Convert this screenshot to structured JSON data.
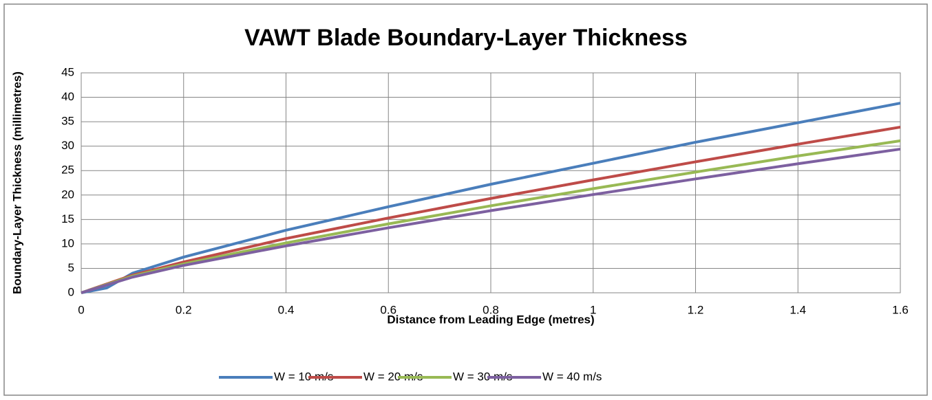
{
  "chart_data": {
    "type": "line",
    "title": "VAWT Blade Boundary-Layer Thickness",
    "xlabel": "Distance from Leading Edge (metres)",
    "ylabel": "Boundary-Layer Thickness (millimetres)",
    "x": [
      0,
      0.05,
      0.1,
      0.2,
      0.4,
      0.6,
      0.8,
      1.0,
      1.2,
      1.4,
      1.6
    ],
    "series": [
      {
        "name": "W = 10 m/s",
        "color": "#4a7ebb",
        "values": [
          0,
          1.0,
          4.0,
          7.3,
          12.8,
          17.6,
          22.2,
          26.5,
          30.8,
          34.8,
          38.8
        ]
      },
      {
        "name": "W = 20 m/s",
        "color": "#be4b48",
        "values": [
          0,
          1.8,
          3.6,
          6.3,
          11.1,
          15.3,
          19.3,
          23.1,
          26.8,
          30.4,
          33.9
        ]
      },
      {
        "name": "W = 30 m/s",
        "color": "#98b954",
        "values": [
          0,
          1.7,
          3.4,
          5.9,
          10.2,
          14.1,
          17.8,
          21.3,
          24.7,
          28.0,
          31.1
        ]
      },
      {
        "name": "W = 40 m/s",
        "color": "#7d60a0",
        "values": [
          0,
          1.6,
          3.2,
          5.6,
          9.6,
          13.3,
          16.8,
          20.1,
          23.3,
          26.4,
          29.4
        ]
      }
    ],
    "xlim": [
      0,
      1.6
    ],
    "xticks": [
      0,
      0.2,
      0.4,
      0.6,
      0.8,
      1,
      1.2,
      1.4,
      1.6
    ],
    "ylim": [
      0,
      45
    ],
    "yticks": [
      0,
      5,
      10,
      15,
      20,
      25,
      30,
      35,
      40,
      45
    ],
    "grid": true,
    "legend": "bottom"
  }
}
